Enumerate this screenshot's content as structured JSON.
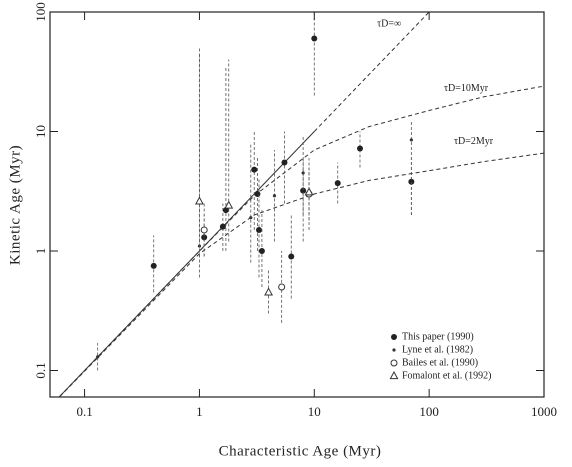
{
  "chart_data": {
    "type": "scatter",
    "x_label": "Characteristic Age (Myr)",
    "y_label": "Kinetic Age (Myr)",
    "log_x": true,
    "log_y": true,
    "xlim": [
      0.05,
      1000
    ],
    "ylim": [
      0.06,
      100
    ],
    "xticks": [
      0.1,
      1,
      10,
      100,
      1000
    ],
    "yticks": [
      0.1,
      1,
      10,
      100
    ],
    "legend": "lower right",
    "series": [
      {
        "name": "This paper (1990)",
        "marker": "filled",
        "color": "#222",
        "x": [
          0.4,
          1.1,
          1.6,
          1.7,
          3.0,
          3.2,
          3.3,
          3.5,
          5.5,
          6.3,
          8,
          10,
          16,
          25,
          70
        ],
        "values": [
          0.75,
          1.3,
          1.6,
          2.2,
          4.8,
          3.0,
          1.5,
          1.0,
          5.5,
          0.9,
          3.2,
          60,
          3.7,
          7.2,
          3.8
        ],
        "ylow": [
          0.45,
          0.9,
          1.0,
          1.0,
          1.5,
          1.0,
          0.6,
          0.5,
          2.5,
          0.4,
          1.2,
          20,
          2.5,
          5,
          2
        ],
        "yhigh": [
          1.35,
          2.0,
          2.5,
          35,
          10,
          6,
          4,
          2.2,
          10,
          2.0,
          6,
          100,
          5.5,
          10,
          6
        ]
      },
      {
        "name": "Lyne et al. (1982)",
        "marker": "dot",
        "color": "#333",
        "x": [
          0.13,
          1.0,
          2.8,
          4.5,
          8,
          70
        ],
        "values": [
          0.13,
          1.1,
          1.9,
          2.9,
          4.5,
          8.5
        ],
        "ylow": [
          0.1,
          0.6,
          0.8,
          1.2,
          2.0,
          2.0
        ],
        "yhigh": [
          0.17,
          45,
          8,
          7,
          9,
          12
        ]
      },
      {
        "name": "Bailes et al. (1990)",
        "marker": "open",
        "color": "#333",
        "x": [
          1.1,
          5.2,
          9
        ],
        "values": [
          1.5,
          0.5,
          3.0
        ],
        "ylow": [
          0.9,
          0.25,
          1.5
        ],
        "yhigh": [
          2.5,
          1.0,
          5
        ]
      },
      {
        "name": "Fomalont et al. (1992)",
        "marker": "triangle",
        "color": "#333",
        "x": [
          1.0,
          1.8,
          4.0,
          9
        ],
        "values": [
          2.6,
          2.4,
          0.45,
          3.1
        ],
        "ylow": [
          0.9,
          1.2,
          0.3,
          1.8
        ],
        "yhigh": [
          50,
          40,
          0.7,
          6
        ]
      }
    ],
    "curves": [
      {
        "style": "solid",
        "x": [
          0.05,
          10
        ],
        "values": [
          0.05,
          10
        ]
      },
      {
        "style": "dashed",
        "x": [
          10,
          100
        ],
        "values": [
          10,
          100
        ]
      },
      {
        "style": "dashed",
        "x": [
          0.05,
          1,
          3,
          10,
          30,
          100,
          300,
          1000
        ],
        "values": [
          0.05,
          1,
          2.9,
          7,
          11,
          15,
          19.5,
          24
        ]
      },
      {
        "style": "dashed",
        "x": [
          0.05,
          1,
          3,
          10,
          30,
          100,
          300,
          1000
        ],
        "values": [
          0.05,
          0.95,
          2.0,
          3.0,
          3.9,
          4.7,
          5.6,
          6.6
        ]
      }
    ],
    "annotations": [
      "τD=∞",
      "τD=10Myr",
      "τD=2Myr"
    ]
  }
}
